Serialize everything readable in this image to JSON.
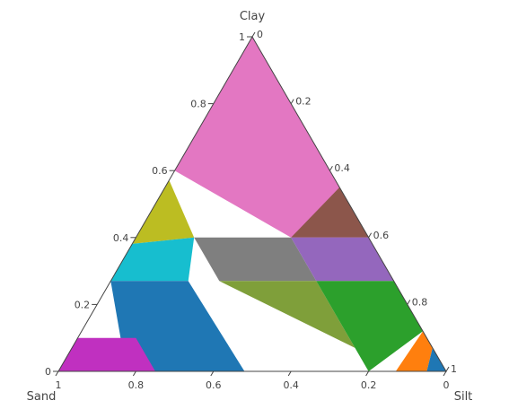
{
  "chart_data": {
    "type": "ternary",
    "axes": {
      "a": {
        "title": "Clay",
        "ticks": [
          0,
          0.2,
          0.4,
          0.6,
          0.8,
          1
        ]
      },
      "b": {
        "title": "Sand",
        "ticks": [
          0,
          0.2,
          0.4,
          0.6,
          0.8,
          1
        ]
      },
      "c": {
        "title": "Silt",
        "ticks": [
          0,
          0.2,
          0.4,
          0.6,
          0.8,
          1
        ]
      }
    },
    "tick_labels": {
      "a": [
        "0",
        "0.2",
        "0.4",
        "0.6",
        "0.8",
        "1"
      ],
      "b": [
        "0",
        "0.2",
        "0.4",
        "0.6",
        "0.8",
        "1"
      ],
      "c": [
        "0",
        "0.2",
        "0.4",
        "0.6",
        "0.8",
        "1"
      ]
    },
    "grid": false,
    "legend": "none",
    "regions": [
      {
        "color": "#e377c2",
        "points": [
          [
            1.0,
            0,
            0
          ],
          [
            0.6,
            0.45,
            -0.05
          ],
          [
            0.6,
            0.4,
            0.0
          ],
          [
            0.4,
            0.2,
            0.4
          ],
          [
            0.4,
            0.0,
            0.6
          ]
        ]
      },
      {
        "color": "#bcbd22",
        "points": [
          [
            0.6,
            0.45,
            -0.05
          ],
          [
            0.4,
            0.65,
            -0.05
          ],
          [
            0.4,
            0.45,
            0.15
          ]
        ]
      },
      {
        "color": "#8c564b",
        "points": [
          [
            0.55,
            0.0,
            0.45
          ],
          [
            0.4,
            0.0,
            0.6
          ],
          [
            0.4,
            0.2,
            0.4
          ]
        ]
      },
      {
        "color": "#17becf",
        "points": [
          [
            0.4,
            0.65,
            -0.05
          ],
          [
            0.27,
            0.73,
            0.0
          ],
          [
            0.27,
            0.53,
            0.2
          ],
          [
            0.4,
            0.45,
            0.15
          ]
        ]
      },
      {
        "color": "#7f7f7f",
        "points": [
          [
            0.4,
            0.45,
            0.15
          ],
          [
            0.4,
            0.2,
            0.4
          ],
          [
            0.27,
            0.2,
            0.53
          ],
          [
            0.27,
            0.45,
            0.28
          ]
        ]
      },
      {
        "color": "#9467bd",
        "points": [
          [
            0.4,
            0.2,
            0.4
          ],
          [
            0.4,
            0.0,
            0.6
          ],
          [
            0.27,
            0.0,
            0.73
          ],
          [
            0.27,
            0.2,
            0.53
          ]
        ]
      },
      {
        "color": "#1f77b4",
        "points": [
          [
            0.27,
            0.73,
            0.0
          ],
          [
            0.27,
            0.53,
            0.2
          ],
          [
            0.0,
            0.52,
            0.48
          ],
          [
            0.0,
            0.8,
            0.2
          ],
          [
            0.07,
            0.8,
            0.13
          ]
        ]
      },
      {
        "color": "#bcbd22_",
        "points": []
      },
      {
        "color": "#7f9f3a",
        "points": [
          [
            0.27,
            0.45,
            0.28
          ],
          [
            0.27,
            0.2,
            0.53
          ],
          [
            0.0,
            0.2,
            0.8
          ],
          [
            0.07,
            0.2,
            0.73
          ]
        ]
      },
      {
        "color": "#2ca02c",
        "points": [
          [
            0.27,
            0.2,
            0.53
          ],
          [
            0.27,
            0.0,
            0.73
          ],
          [
            0.12,
            0.0,
            0.88
          ],
          [
            0.0,
            0.2,
            0.8
          ]
        ]
      },
      {
        "color": "#ff7f0e",
        "points": [
          [
            0.12,
            0.0,
            0.88
          ],
          [
            0.0,
            0.13,
            0.87
          ],
          [
            0.0,
            0.05,
            0.95
          ],
          [
            0.07,
            0.0,
            0.93
          ]
        ]
      },
      {
        "color": "#1f77b4",
        "points": [
          [
            0.07,
            0.0,
            0.93
          ],
          [
            0.0,
            0.05,
            0.95
          ],
          [
            0.0,
            0.0,
            1.0
          ]
        ]
      },
      {
        "color": "#c030c0",
        "points": [
          [
            0.1,
            0.9,
            0.0
          ],
          [
            0.1,
            0.75,
            0.15
          ],
          [
            0.0,
            0.75,
            0.25
          ],
          [
            0.0,
            1.0,
            0.0
          ]
        ]
      }
    ]
  }
}
